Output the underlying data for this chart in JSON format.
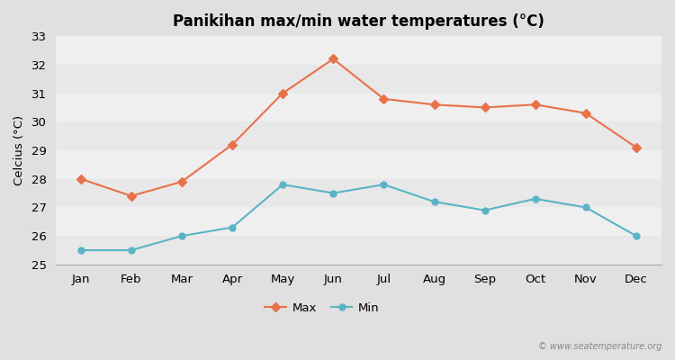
{
  "months": [
    "Jan",
    "Feb",
    "Mar",
    "Apr",
    "May",
    "Jun",
    "Jul",
    "Aug",
    "Sep",
    "Oct",
    "Nov",
    "Dec"
  ],
  "max_temps": [
    28.0,
    27.4,
    27.9,
    29.2,
    31.0,
    32.2,
    30.8,
    30.6,
    30.5,
    30.6,
    30.3,
    29.1
  ],
  "min_temps": [
    25.5,
    25.5,
    26.0,
    26.3,
    27.8,
    27.5,
    27.8,
    27.2,
    26.9,
    27.3,
    27.0,
    26.0
  ],
  "max_color": "#e8714a",
  "min_color": "#5ab4c5",
  "title": "Panikihan max/min water temperatures (°C)",
  "ylabel": "Celcius (°C)",
  "ylim": [
    25,
    33
  ],
  "yticks": [
    25,
    26,
    27,
    28,
    29,
    30,
    31,
    32,
    33
  ],
  "band_colors": [
    "#e8e8e8",
    "#efefef"
  ],
  "outer_bg": "#e0e0e0",
  "watermark": "© www.seatemperature.org",
  "legend_max": "Max",
  "legend_min": "Min"
}
